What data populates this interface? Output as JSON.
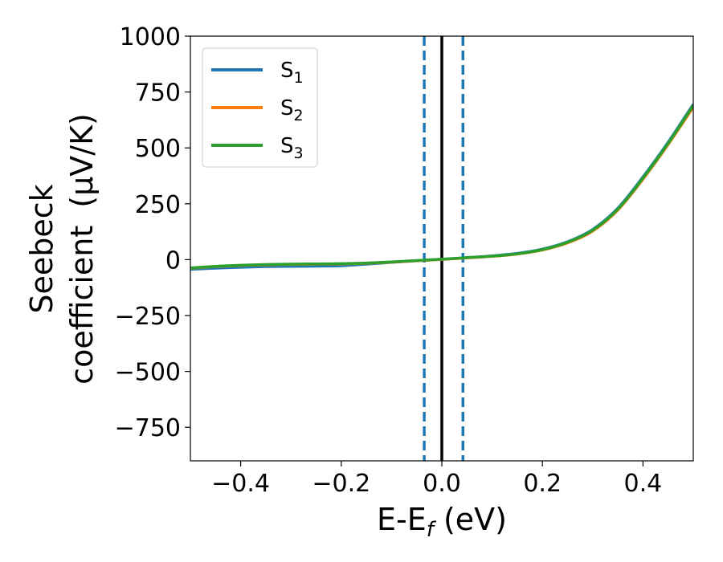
{
  "chart_data": {
    "type": "line",
    "xlabel": {
      "main": "E-E",
      "sub": "f",
      "unit": " (eV)"
    },
    "ylabel": {
      "line1": "Seebeck",
      "line2": "coefficient",
      "unit": "(μV/K)"
    },
    "xlim": [
      -0.5,
      0.5
    ],
    "ylim": [
      -900,
      1000
    ],
    "xticks": [
      -0.4,
      -0.2,
      0.0,
      0.2,
      0.4
    ],
    "xtick_labels": [
      "−0.4",
      "−0.2",
      "0.0",
      "0.2",
      "0.4"
    ],
    "yticks": [
      -750,
      -500,
      -250,
      0,
      250,
      500,
      750,
      1000
    ],
    "ytick_labels": [
      "−750",
      "−500",
      "−250",
      "0",
      "250",
      "500",
      "750",
      "1000"
    ],
    "legend_position": "top-left",
    "series": [
      {
        "name": "S",
        "sub": "1",
        "color": "#1f77b4",
        "x": [
          -0.5,
          -0.45,
          -0.4,
          -0.35,
          -0.3,
          -0.25,
          -0.2,
          -0.15,
          -0.1,
          -0.05,
          0.0,
          0.05,
          0.1,
          0.15,
          0.2,
          0.25,
          0.3,
          0.35,
          0.4,
          0.45,
          0.5
        ],
        "y": [
          -43,
          -38,
          -34,
          -31,
          -30,
          -29,
          -27,
          -20,
          -12,
          -5,
          2,
          9,
          17,
          28,
          47,
          80,
          135,
          230,
          370,
          525,
          695
        ]
      },
      {
        "name": "S",
        "sub": "2",
        "color": "#ff7f0e",
        "x": [
          -0.5,
          -0.45,
          -0.4,
          -0.35,
          -0.3,
          -0.25,
          -0.2,
          -0.15,
          -0.1,
          -0.05,
          0.0,
          0.05,
          0.1,
          0.15,
          0.2,
          0.25,
          0.3,
          0.35,
          0.4,
          0.45,
          0.5
        ],
        "y": [
          -38,
          -31,
          -26,
          -23,
          -21,
          -20,
          -19,
          -16,
          -11,
          -5,
          1,
          8,
          15,
          25,
          43,
          75,
          128,
          222,
          360,
          515,
          682
        ]
      },
      {
        "name": "S",
        "sub": "3",
        "color": "#2ca02c",
        "x": [
          -0.5,
          -0.45,
          -0.4,
          -0.35,
          -0.3,
          -0.25,
          -0.2,
          -0.15,
          -0.1,
          -0.05,
          0.0,
          0.05,
          0.1,
          0.15,
          0.2,
          0.25,
          0.3,
          0.35,
          0.4,
          0.45,
          0.5
        ],
        "y": [
          -37,
          -30,
          -25,
          -22,
          -20,
          -19,
          -18,
          -15,
          -10,
          -4,
          2,
          9,
          16,
          26,
          45,
          78,
          132,
          226,
          365,
          520,
          690
        ]
      }
    ],
    "vertical_lines": [
      {
        "x": -0.035,
        "style": "dashed",
        "color": "#1f77b4"
      },
      {
        "x": 0.0,
        "style": "solid",
        "color": "#000000"
      },
      {
        "x": 0.042,
        "style": "dashed",
        "color": "#1f77b4"
      }
    ]
  }
}
